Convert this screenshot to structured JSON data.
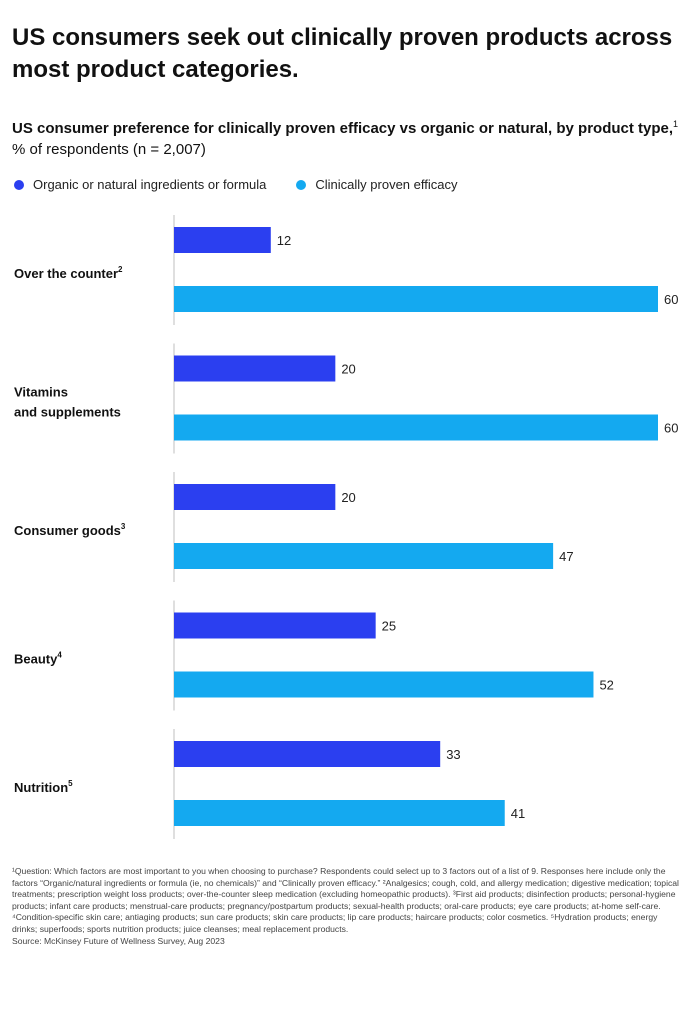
{
  "title": "US consumers seek out clinically proven products across most product categories.",
  "subtitle": {
    "bold": "US consumer preference for clinically proven efficacy vs organic or natural, by product type,",
    "marker": "1",
    "rest": " % of respondents (n = 2,007)"
  },
  "colors": {
    "organic": "#2b3ff0",
    "clinical": "#14a9f0",
    "axis": "#bfbfbf"
  },
  "chart_data": {
    "type": "bar",
    "orientation": "horizontal",
    "categories": [
      {
        "label": [
          "Over the counter"
        ],
        "sup": "2"
      },
      {
        "label": [
          "Vitamins",
          "and supplements"
        ],
        "sup": ""
      },
      {
        "label": [
          "Consumer goods"
        ],
        "sup": "3"
      },
      {
        "label": [
          "Beauty"
        ],
        "sup": "4"
      },
      {
        "label": [
          "Nutrition"
        ],
        "sup": "5"
      }
    ],
    "series": [
      {
        "name": "Organic or natural ingredients or formula",
        "values": [
          12,
          20,
          20,
          25,
          33
        ]
      },
      {
        "name": "Clinically proven efficacy",
        "values": [
          60,
          60,
          47,
          52,
          41
        ]
      }
    ],
    "xlim": [
      0,
      60
    ],
    "unit": "% of respondents"
  },
  "footnote": "¹Question: Which factors are most important to you when choosing to purchase? Respondents could select up to 3 factors out of a list of 9. Responses here include only the factors “Organic/natural ingredients or formula (ie, no chemicals)” and “Clinically proven efficacy.” ²Analgesics; cough, cold, and allergy medication; digestive medication; topical treatments; prescription weight loss products; over-the-counter sleep medication (excluding homeopathic products). ³First aid products; disinfection products; personal-hygiene products; infant care products; menstrual-care products; pregnancy/postpartum products; sexual-health products; oral-care products; eye care products; at-home self-care. ⁴Condition-specific skin care; antiaging products; sun care products; skin care products; lip care products; haircare products; color cosmetics. ⁵Hydration products; energy drinks; superfoods; sports nutrition products; juice cleanses; meal replacement products.",
  "source": "Source: McKinsey Future of Wellness Survey, Aug 2023"
}
